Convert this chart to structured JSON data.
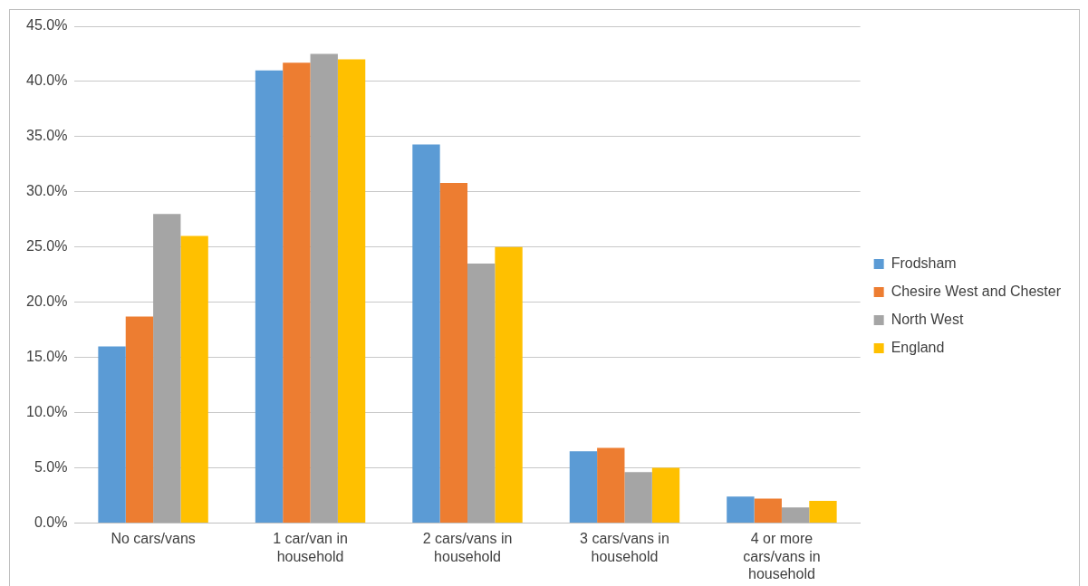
{
  "chart_data": {
    "type": "bar",
    "categories": [
      "No cars/vans",
      "1 car/van in household",
      "2 cars/vans in household",
      "3 cars/vans in household",
      "4 or more cars/vans in household"
    ],
    "series": [
      {
        "name": "Frodsham",
        "color": "#5b9bd5",
        "values": [
          16.0,
          41.0,
          34.3,
          6.5,
          2.4
        ]
      },
      {
        "name": "Chesire West and Chester",
        "color": "#ed7d31",
        "values": [
          18.7,
          41.7,
          30.8,
          6.8,
          2.2
        ]
      },
      {
        "name": "North West",
        "color": "#a5a5a5",
        "values": [
          28.0,
          42.5,
          23.5,
          4.6,
          1.4
        ]
      },
      {
        "name": "England",
        "color": "#ffc000",
        "values": [
          26.0,
          42.0,
          25.0,
          5.0,
          2.0
        ]
      }
    ],
    "ylim": [
      0,
      45
    ],
    "yticks": [
      {
        "value": 0,
        "label": "0.0%"
      },
      {
        "value": 5,
        "label": "5.0%"
      },
      {
        "value": 10,
        "label": "10.0%"
      },
      {
        "value": 15,
        "label": "15.0%"
      },
      {
        "value": 20,
        "label": "20.0%"
      },
      {
        "value": 25,
        "label": "25.0%"
      },
      {
        "value": 30,
        "label": "30.0%"
      },
      {
        "value": 35,
        "label": "35.0%"
      },
      {
        "value": 40,
        "label": "40.0%"
      },
      {
        "value": 45,
        "label": "45.0%"
      }
    ],
    "grid": "y",
    "legend": "right"
  }
}
